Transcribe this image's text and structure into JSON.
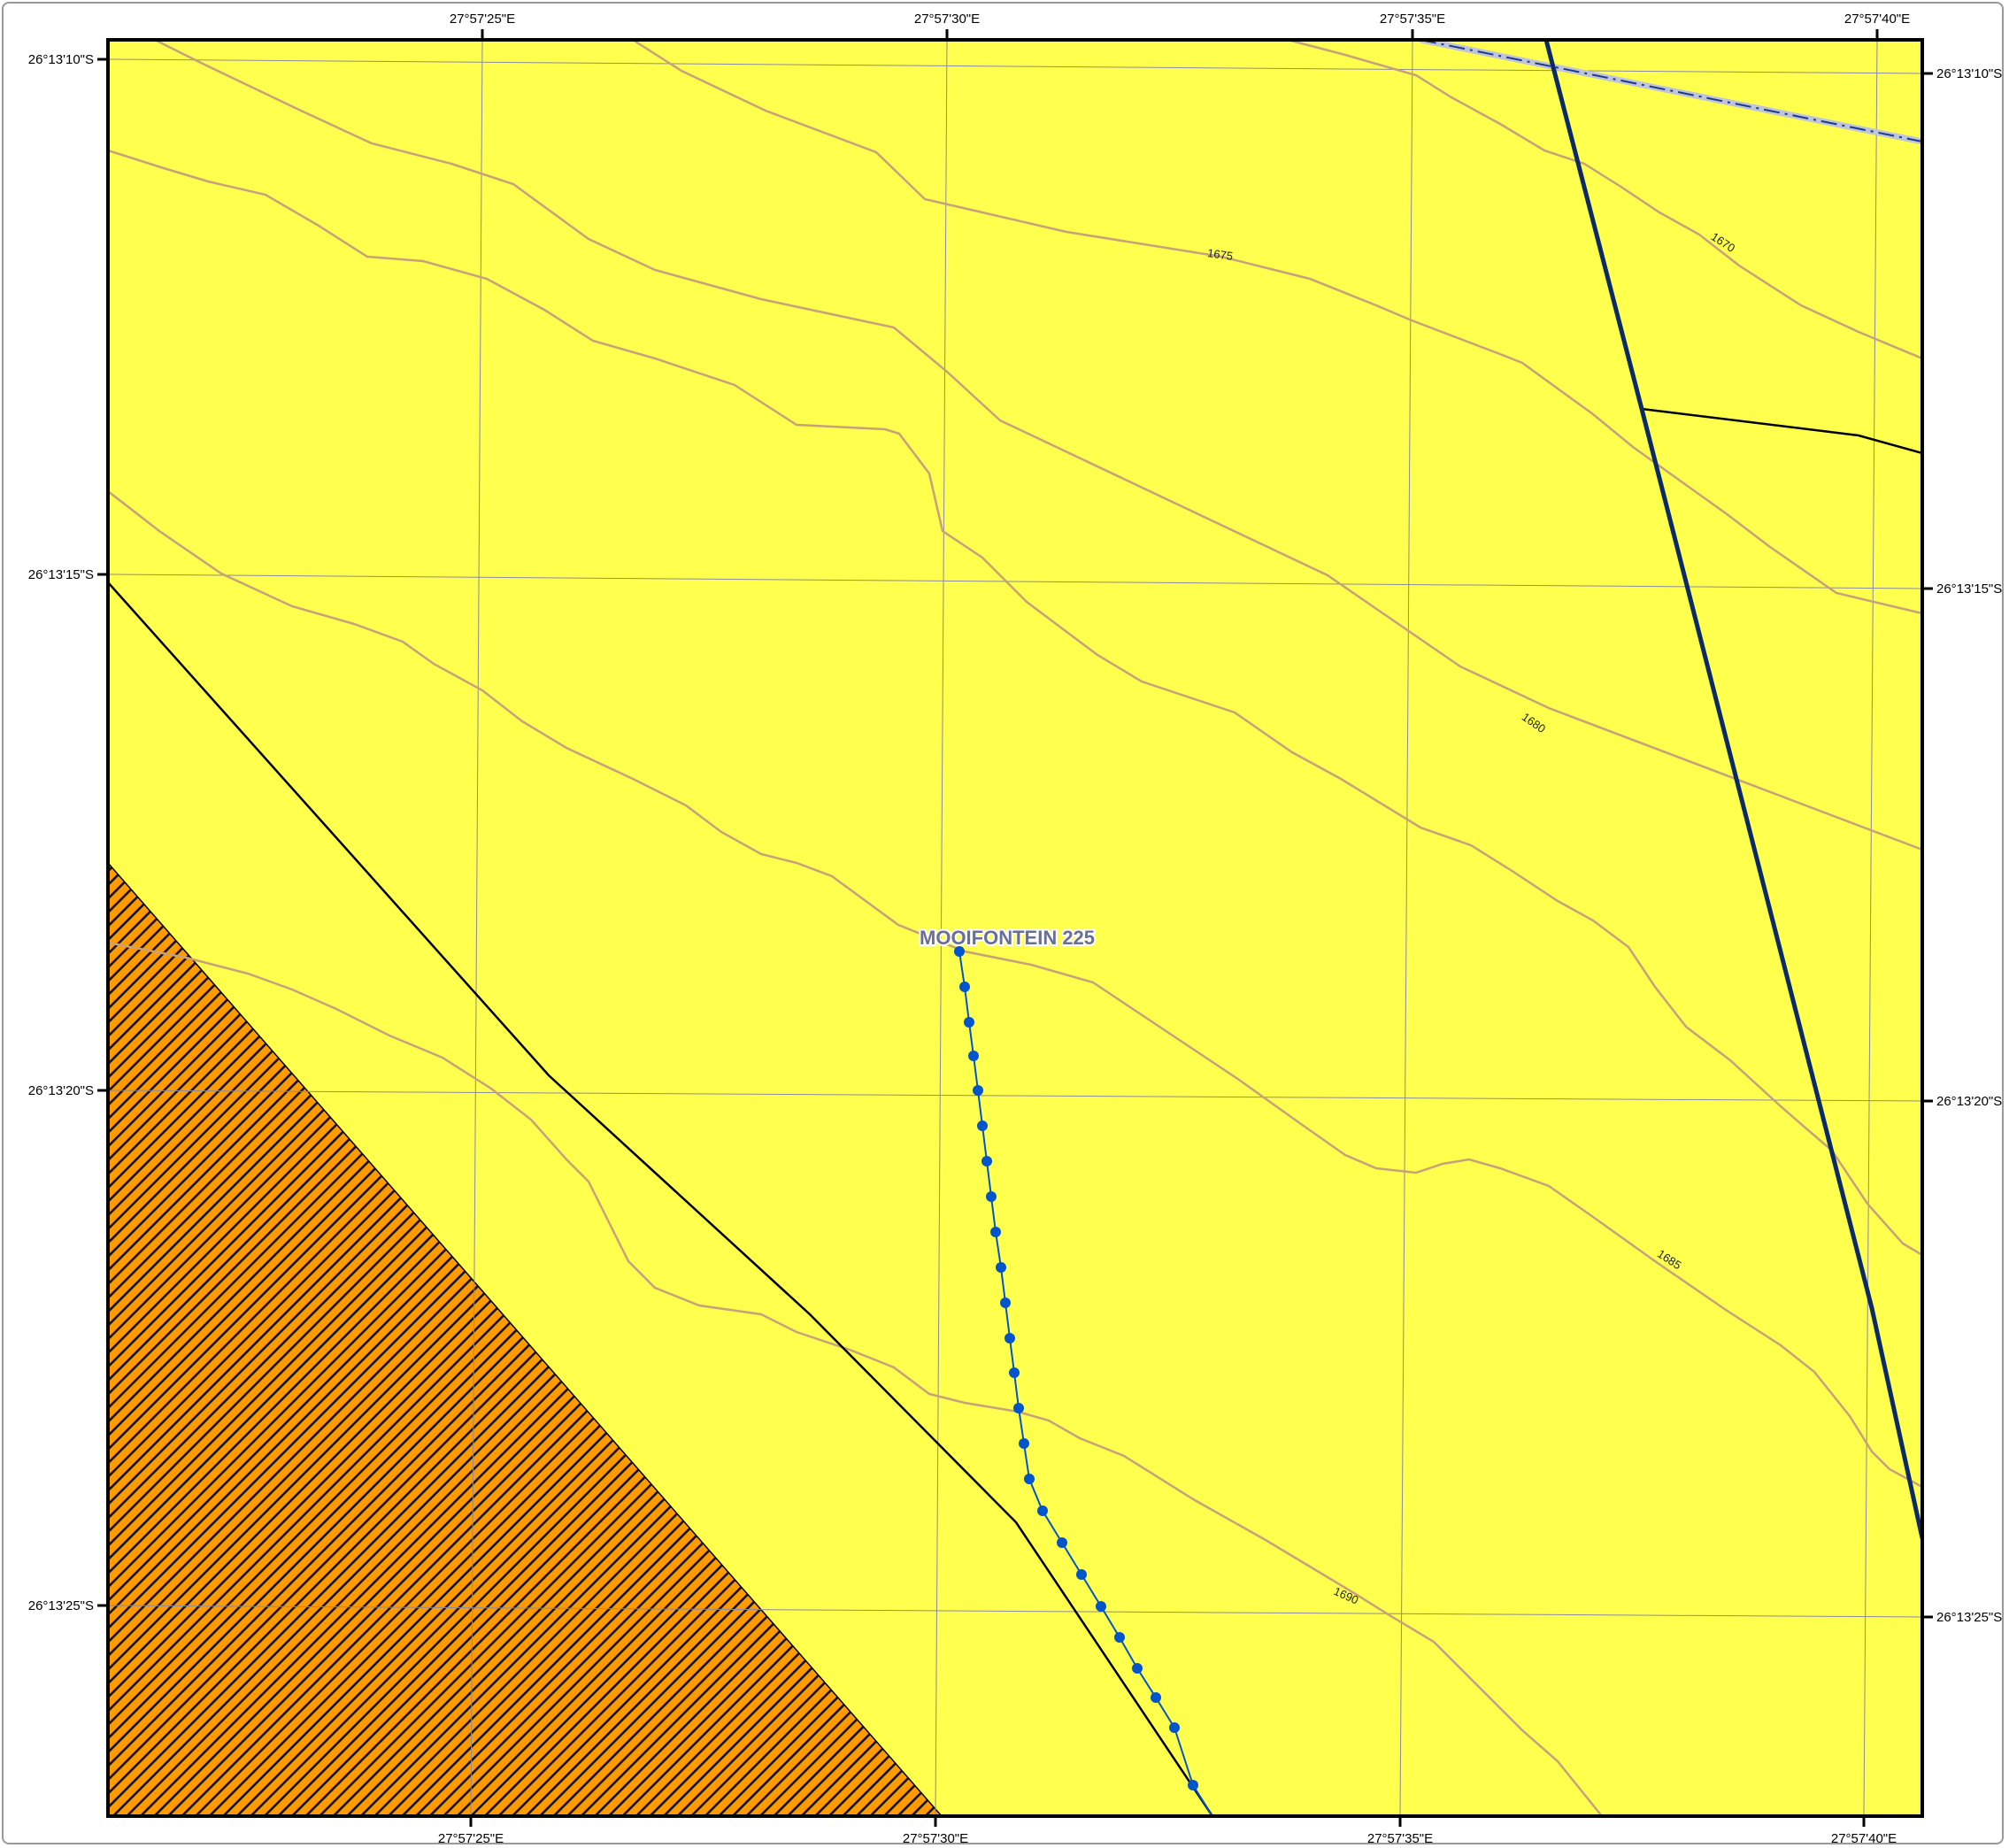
{
  "map": {
    "place_label": "MOOIFONTEIN 225",
    "colors": {
      "land_fill": "#ffff4d",
      "hatch_fill": "#ff9a00",
      "hatch_stripe": "#111111",
      "contour": "#c8a07a",
      "grid": "#8a8aa0",
      "boundary": "#000000",
      "road": "#0b2a66",
      "route": "#0055cc",
      "rail": "#1a3a8a"
    },
    "longitude_labels_top": [
      "27°57'25\"E",
      "27°57'30\"E",
      "27°57'35\"E",
      "27°57'40\"E"
    ],
    "longitude_labels_bottom": [
      "27°57'25\"E",
      "27°57'30\"E",
      "27°57'35\"E",
      "27°57'40\"E"
    ],
    "latitude_labels_left": [
      "26°13'10\"S",
      "26°13'15\"S",
      "26°13'20\"S",
      "26°13'25\"S"
    ],
    "latitude_labels_right": [
      "26°13'10\"S",
      "26°13'15\"S",
      "26°13'20\"S",
      "26°13'25\"S"
    ],
    "contour_labels": [
      "1670",
      "1675",
      "1680",
      "1685",
      "1690"
    ]
  }
}
